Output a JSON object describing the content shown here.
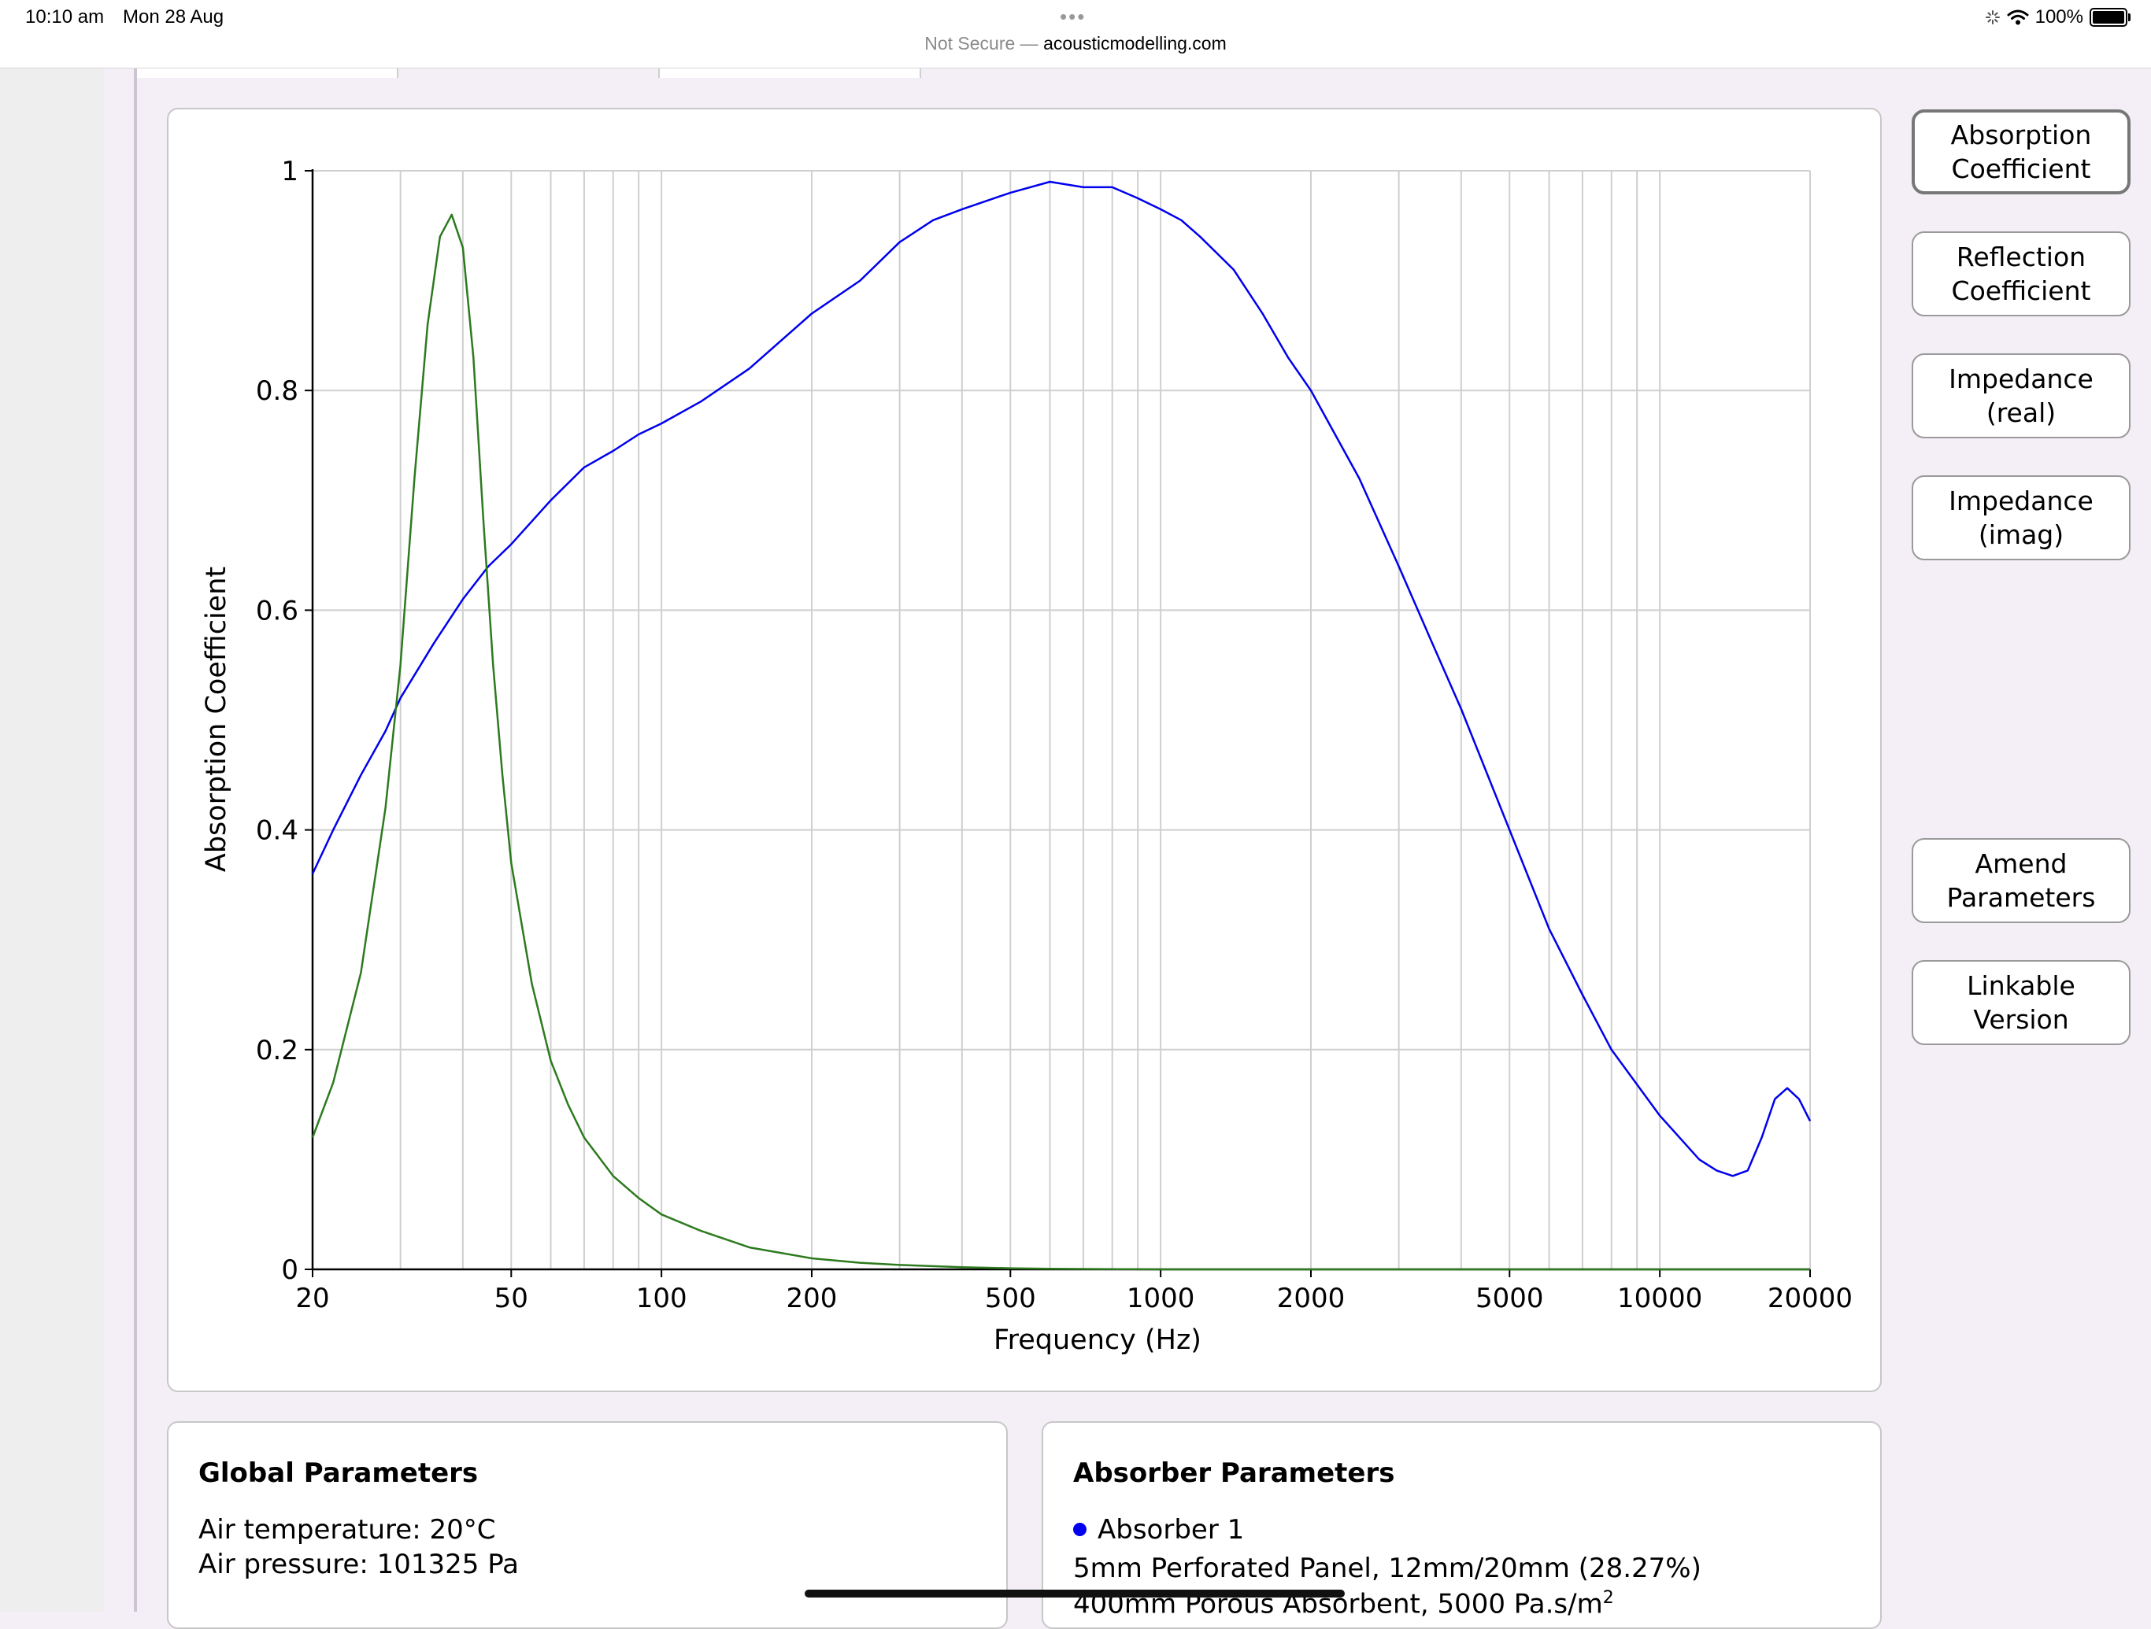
{
  "status_bar": {
    "time": "10:10 am",
    "date": "Mon 28 Aug",
    "url_prefix": "Not Secure —",
    "url": "acousticmodelling.com",
    "battery": "100%",
    "battery_level": 1.0
  },
  "sidebar_buttons": [
    {
      "label": "Absorption\nCoefficient",
      "active": true
    },
    {
      "label": "Reflection\nCoefficient",
      "active": false
    },
    {
      "label": "Impedance\n(real)",
      "active": false
    },
    {
      "label": "Impedance\n(imag)",
      "active": false
    },
    {
      "label": "Amend\nParameters",
      "active": false
    },
    {
      "label": "Linkable\nVersion",
      "active": false
    }
  ],
  "chart_data": {
    "type": "line",
    "xlabel": "Frequency (Hz)",
    "ylabel": "Absorption Coefficient",
    "xscale": "log",
    "xlim": [
      20,
      20000
    ],
    "ylim": [
      0,
      1
    ],
    "x_tick_labels": [
      "20",
      "50",
      "100",
      "200",
      "500",
      "1000",
      "2000",
      "5000",
      "10000",
      "20000"
    ],
    "y_tick_labels": [
      "0",
      "0.2",
      "0.4",
      "0.6",
      "0.8",
      "1"
    ],
    "grid": true,
    "series": [
      {
        "color": "#0000ee",
        "x": [
          20,
          22,
          25,
          28,
          30,
          35,
          40,
          45,
          50,
          60,
          70,
          80,
          90,
          100,
          120,
          150,
          200,
          250,
          300,
          350,
          400,
          500,
          600,
          700,
          800,
          900,
          1000,
          1100,
          1200,
          1400,
          1600,
          1800,
          2000,
          2500,
          3000,
          3500,
          4000,
          5000,
          6000,
          7000,
          8000,
          10000,
          12000,
          13000,
          14000,
          15000,
          16000,
          17000,
          18000,
          19000,
          20000
        ],
        "y": [
          0.36,
          0.4,
          0.45,
          0.49,
          0.52,
          0.57,
          0.61,
          0.64,
          0.66,
          0.7,
          0.73,
          0.745,
          0.76,
          0.77,
          0.79,
          0.82,
          0.87,
          0.9,
          0.935,
          0.955,
          0.965,
          0.98,
          0.99,
          0.985,
          0.985,
          0.975,
          0.965,
          0.955,
          0.94,
          0.91,
          0.87,
          0.83,
          0.8,
          0.72,
          0.64,
          0.57,
          0.51,
          0.4,
          0.31,
          0.25,
          0.2,
          0.14,
          0.1,
          0.09,
          0.085,
          0.09,
          0.12,
          0.155,
          0.165,
          0.155,
          0.135
        ]
      },
      {
        "color": "#2d7a1f",
        "x": [
          20,
          22,
          25,
          28,
          30,
          32,
          34,
          36,
          38,
          40,
          42,
          44,
          46,
          48,
          50,
          55,
          60,
          65,
          70,
          80,
          90,
          100,
          120,
          150,
          200,
          250,
          300,
          400,
          500,
          600,
          1000,
          2000,
          5000,
          10000,
          20000
        ],
        "y": [
          0.12,
          0.17,
          0.27,
          0.42,
          0.55,
          0.72,
          0.86,
          0.94,
          0.96,
          0.93,
          0.83,
          0.68,
          0.55,
          0.45,
          0.37,
          0.26,
          0.19,
          0.15,
          0.12,
          0.085,
          0.065,
          0.05,
          0.035,
          0.02,
          0.01,
          0.006,
          0.004,
          0.002,
          0.001,
          0.0005,
          0,
          0,
          0,
          0,
          0
        ]
      }
    ]
  },
  "global_parameters": {
    "title": "Global Parameters",
    "air_temperature": "Air temperature: 20°C",
    "air_pressure": "Air pressure: 101325 Pa"
  },
  "absorber_parameters": {
    "title": "Absorber Parameters",
    "absorber_name": "Absorber 1",
    "layer1": "5mm Perforated Panel, 12mm/20mm (28.27%)",
    "layer2": "400mm Porous Absorbent, 5000 Pa.s/m",
    "layer2_sup": "2",
    "dot_color": "#0000ee"
  }
}
